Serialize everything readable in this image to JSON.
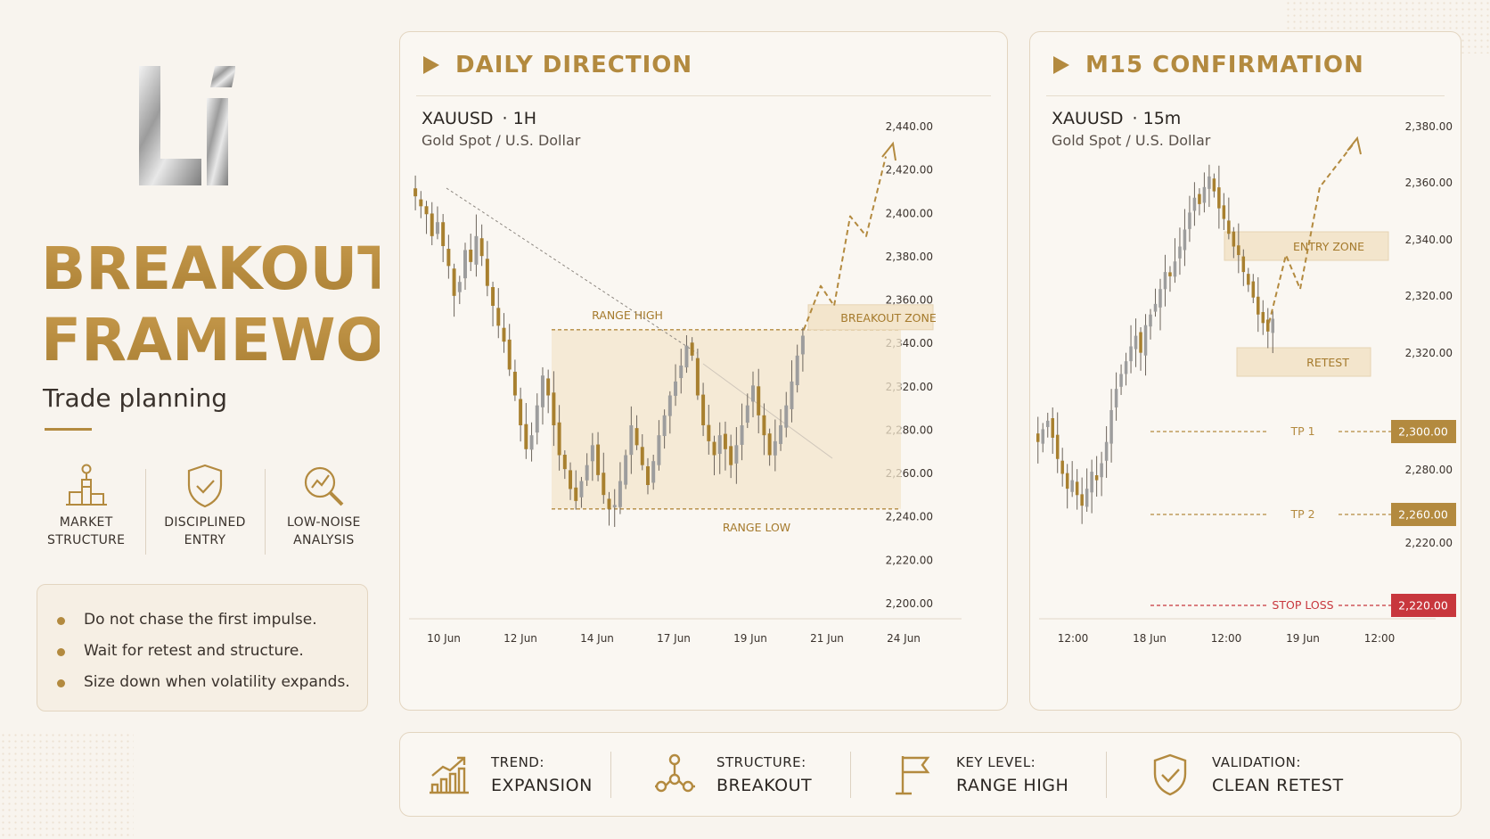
{
  "brand": {
    "title_line1": "BREAKOUT",
    "title_line2": "FRAMEWORK",
    "subtitle": "Trade planning",
    "accent": "#b38a3f"
  },
  "features": [
    {
      "label": "MARKET\nSTRUCTURE",
      "icon": "podium-blocks-icon"
    },
    {
      "label": "DISCIPLINED\nENTRY",
      "icon": "shield-check-icon"
    },
    {
      "label": "LOW-NOISE\nANALYSIS",
      "icon": "magnifier-chart-icon"
    }
  ],
  "tips": [
    "Do not chase the first impulse.",
    "Wait for retest and structure.",
    "Size down when volatility expands."
  ],
  "panels": {
    "daily": {
      "title": "DAILY DIRECTION",
      "symbol": "XAUUSD",
      "timeframe": "· 1H",
      "instrument": "Gold Spot / U.S. Dollar"
    },
    "m15": {
      "title": "M15 CONFIRMATION",
      "symbol": "XAUUSD",
      "timeframe": "· 15m",
      "instrument": "Gold Spot / U.S. Dollar"
    }
  },
  "chart_data": [
    {
      "type": "candlestick",
      "ylim": [
        2200,
        2440
      ],
      "y_ticks": [
        "2,440.00",
        "2,420.00",
        "2,400.00",
        "2,380.00",
        "2,360.00",
        "2,340.00",
        "2,320.00",
        "2,280.00",
        "2,260.00",
        "2,240.00",
        "2,220.00",
        "2,200.00"
      ],
      "x_ticks": [
        "10 Jun",
        "12 Jun",
        "14 Jun",
        "17 Jun",
        "19 Jun",
        "21 Jun",
        "24 Jun"
      ],
      "range_high": 2338,
      "range_low": 2248,
      "annotations": {
        "range_high": "RANGE HIGH",
        "range_low": "RANGE LOW",
        "breakout_zone": "BREAKOUT ZONE"
      },
      "closes": [
        2405,
        2400,
        2396,
        2385,
        2392,
        2380,
        2370,
        2355,
        2362,
        2378,
        2372,
        2385,
        2375,
        2360,
        2350,
        2340,
        2332,
        2318,
        2305,
        2290,
        2278,
        2285,
        2300,
        2315,
        2305,
        2290,
        2275,
        2268,
        2258,
        2252,
        2262,
        2270,
        2280,
        2265,
        2255,
        2248,
        2250,
        2262,
        2275,
        2290,
        2280,
        2270,
        2260,
        2272,
        2285,
        2295,
        2305,
        2312,
        2320,
        2330,
        2325,
        2305,
        2290,
        2282,
        2275,
        2285,
        2278,
        2270,
        2280,
        2290,
        2300,
        2310,
        2295,
        2285,
        2275,
        2282,
        2290,
        2300,
        2312,
        2325,
        2335
      ],
      "projection": [
        2338,
        2360,
        2350,
        2395,
        2385,
        2425
      ]
    },
    {
      "type": "candlestick",
      "y_ticks": [
        "2,380.00",
        "2,360.00",
        "2,340.00",
        "2,320.00",
        "2,320.00",
        "2,280.00",
        "2,220.00"
      ],
      "x_ticks": [
        "12:00",
        "18 Jun",
        "12:00",
        "19 Jun",
        "12:00"
      ],
      "levels": [
        {
          "label": "TP 1",
          "value": "2,300.00",
          "color": "#b38a3f"
        },
        {
          "label": "TP 2",
          "value": "2,260.00",
          "color": "#b38a3f"
        },
        {
          "label": "STOP LOSS",
          "value": "2,220.00",
          "color": "#c8373d"
        }
      ],
      "annotations": {
        "entry_zone": "ENTRY ZONE",
        "retest": "RETEST"
      },
      "closes": [
        2280,
        2286,
        2290,
        2282,
        2272,
        2265,
        2258,
        2262,
        2255,
        2250,
        2258,
        2266,
        2262,
        2270,
        2280,
        2295,
        2305,
        2312,
        2318,
        2325,
        2330,
        2322,
        2335,
        2340,
        2345,
        2352,
        2360,
        2358,
        2365,
        2372,
        2380,
        2388,
        2395,
        2392,
        2400,
        2405,
        2398,
        2390,
        2385,
        2378,
        2372,
        2368,
        2360,
        2354,
        2348,
        2340,
        2336,
        2332,
        2338
      ],
      "projection": [
        2336,
        2368,
        2352,
        2400,
        2420
      ]
    }
  ],
  "stats": [
    {
      "key": "TREND:",
      "value": "EXPANSION",
      "icon": "trend-bars-icon"
    },
    {
      "key": "STRUCTURE:",
      "value": "BREAKOUT",
      "icon": "structure-nodes-icon"
    },
    {
      "key": "KEY LEVEL:",
      "value": "RANGE HIGH",
      "icon": "flag-icon"
    },
    {
      "key": "VALIDATION:",
      "value": "CLEAN RETEST",
      "icon": "shield-check-icon"
    }
  ]
}
